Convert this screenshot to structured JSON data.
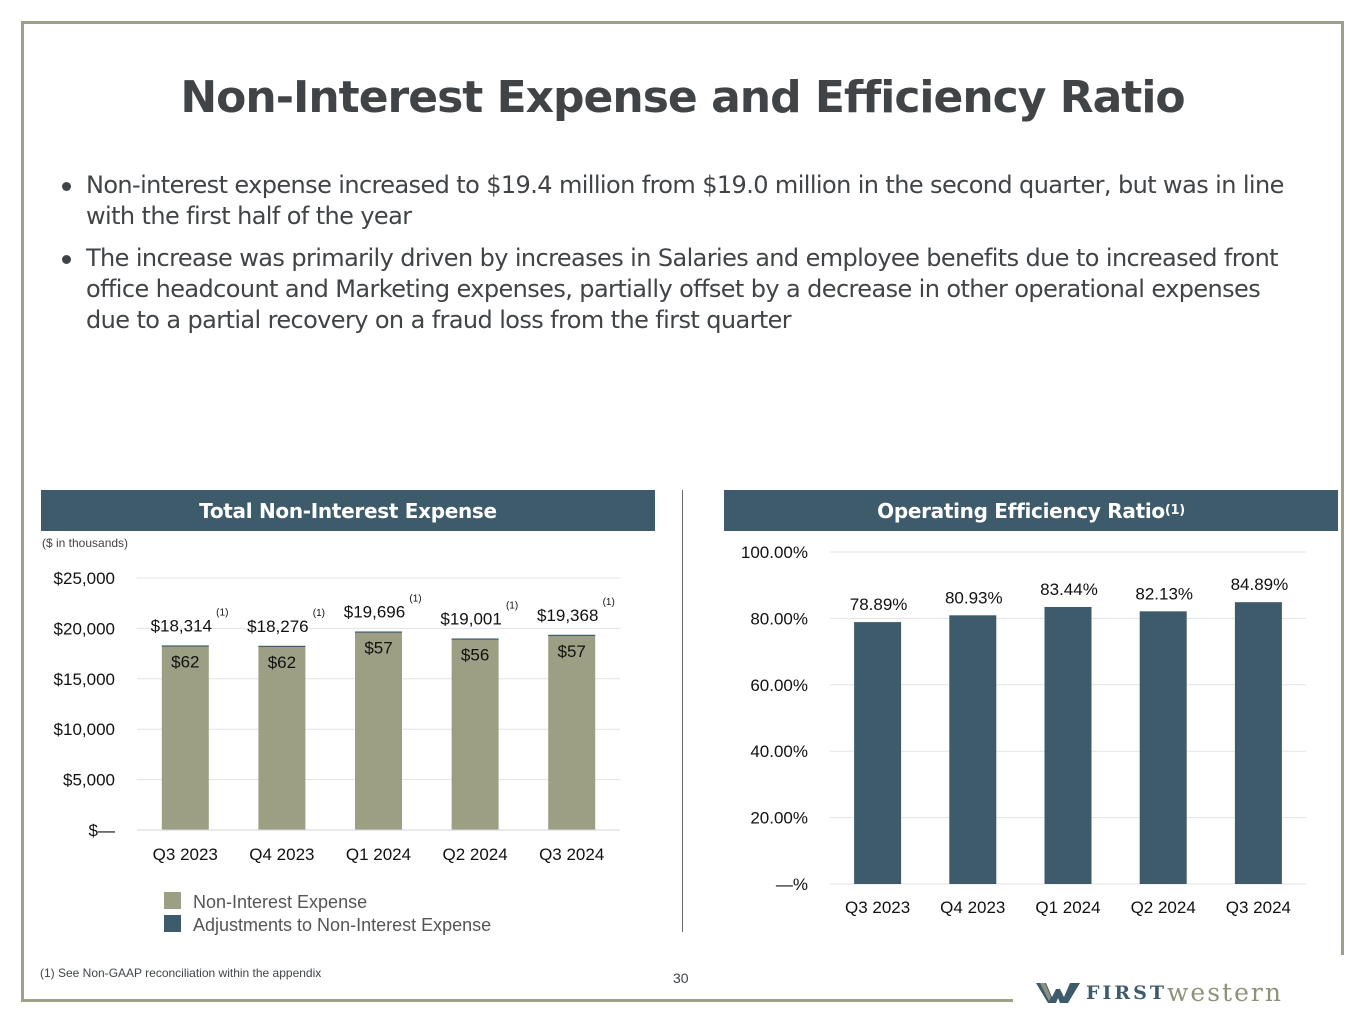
{
  "slide": {
    "title": "Non-Interest Expense and Efficiency Ratio",
    "bullets": [
      "Non-interest expense increased to $19.4 million from $19.0 million in the second quarter, but was in line with the first half of the year",
      "The increase was primarily driven by increases in Salaries and employee benefits due to increased front office headcount and Marketing expenses, partially offset by a decrease in other operational expenses due to a partial recovery on a fraud loss from the first quarter"
    ],
    "footnote": "(1) See Non-GAAP reconciliation within the appendix",
    "page_number": "30",
    "logo": {
      "first": "FIRST",
      "western": "western"
    },
    "colors": {
      "frame": "#9ea088",
      "header": "#3e5b6c",
      "bar_gray": "#9c9f84",
      "bar_blue": "#3e5b6c"
    }
  },
  "panels": {
    "left": {
      "title": "Total Non-Interest Expense",
      "units": "($ in thousands)"
    },
    "right": {
      "title": "Operating Efficiency Ratio",
      "title_sup": "(1)"
    }
  },
  "chart_data": [
    {
      "type": "bar",
      "stacked": true,
      "title": "Total Non-Interest Expense",
      "units_note": "($ in thousands)",
      "categories": [
        "Q3 2023",
        "Q4 2023",
        "Q1 2024",
        "Q2 2024",
        "Q3 2024"
      ],
      "series": [
        {
          "name": "Non-Interest Expense",
          "values": [
            18252,
            18214,
            19639,
            18945,
            19311
          ]
        },
        {
          "name": "Adjustments to Non-Interest Expense",
          "values": [
            62,
            62,
            57,
            56,
            57
          ]
        }
      ],
      "total_labels": [
        "$18,314",
        "$18,276",
        "$19,696",
        "$19,001",
        "$19,368"
      ],
      "total_label_sup": "(1)",
      "adjustment_labels": [
        "$62",
        "$62",
        "$57",
        "$56",
        "$57"
      ],
      "y_ticks": [
        "$—",
        "$5,000",
        "$10,000",
        "$15,000",
        "$20,000",
        "$25,000"
      ],
      "ylim": [
        0,
        25000
      ],
      "legend": [
        "Non-Interest Expense",
        "Adjustments to Non-Interest Expense"
      ],
      "legend_position": "bottom",
      "grid": true
    },
    {
      "type": "bar",
      "title": "Operating Efficiency Ratio",
      "categories": [
        "Q3 2023",
        "Q4 2023",
        "Q1 2024",
        "Q2 2024",
        "Q3 2024"
      ],
      "values": [
        78.89,
        80.93,
        83.44,
        82.13,
        84.89
      ],
      "value_labels": [
        "78.89%",
        "80.93%",
        "83.44%",
        "82.13%",
        "84.89%"
      ],
      "y_ticks": [
        "—%",
        "20.00%",
        "40.00%",
        "60.00%",
        "80.00%",
        "100.00%"
      ],
      "ylim": [
        0,
        100
      ],
      "grid": true
    }
  ]
}
